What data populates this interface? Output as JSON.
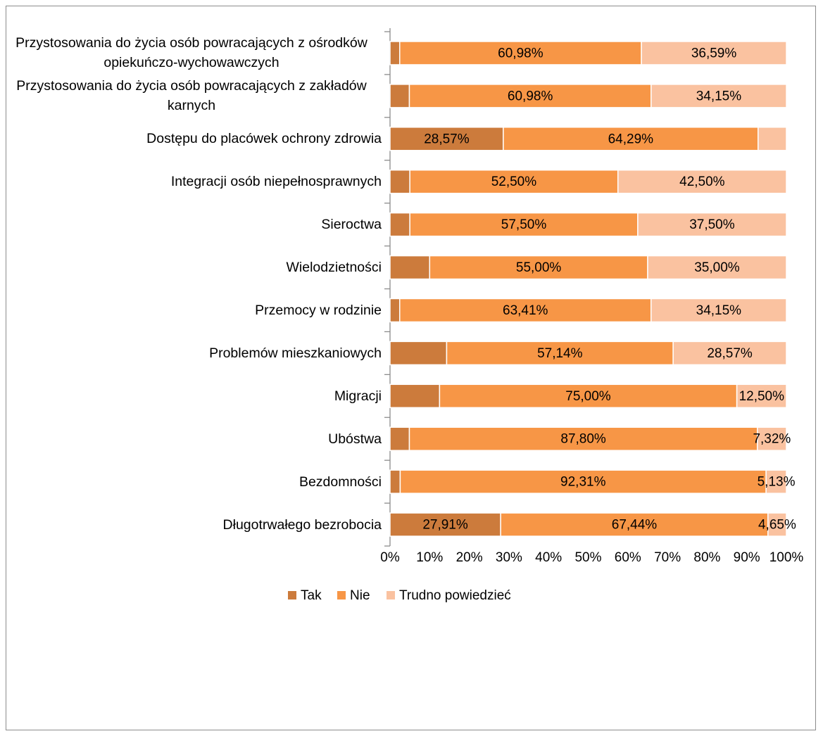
{
  "chart_data": {
    "type": "stacked_barh",
    "categories": [
      "Przystosowania do życia osób powracających z ośrodków opiekuńczo-wychowawczych",
      "Przystosowania do życia osób powracających z zakładów karnych",
      "Dostępu do placówek ochrony zdrowia",
      "Integracji osób niepełnosprawnych",
      "Sieroctwa",
      "Wielodzietności",
      "Przemocy w rodzinie",
      "Problemów mieszkaniowych",
      "Migracji",
      "Ubóstwa",
      "Bezdomności",
      "Długotrwałego bezrobocia"
    ],
    "series": [
      {
        "name": "Tak",
        "color": "#cc7b3c",
        "values": [
          2.44,
          4.88,
          28.57,
          5,
          5,
          10,
          2.44,
          14.29,
          12.5,
          4.88,
          2.56,
          27.91
        ],
        "value_labels": [
          null,
          null,
          "28,57%",
          null,
          null,
          null,
          null,
          null,
          null,
          null,
          null,
          "27,91%"
        ]
      },
      {
        "name": "Nie",
        "color": "#f79646",
        "values": [
          60.98,
          60.98,
          64.29,
          52.5,
          57.5,
          55,
          63.41,
          57.14,
          75,
          87.8,
          92.31,
          67.44
        ],
        "value_labels": [
          "60,98%",
          "60,98%",
          "64,29%",
          "52,50%",
          "57,50%",
          "55,00%",
          "63,41%",
          "57,14%",
          "75,00%",
          "87,80%",
          "92,31%",
          "67,44%"
        ]
      },
      {
        "name": "Trudno powiedzieć",
        "color": "#fac2a0",
        "values": [
          36.59,
          34.15,
          7.14,
          42.5,
          37.5,
          35,
          34.15,
          28.57,
          12.5,
          7.32,
          5.13,
          4.65
        ],
        "value_labels": [
          "36,59%",
          "34,15%",
          null,
          "42,50%",
          "37,50%",
          "35,00%",
          "34,15%",
          "28,57%",
          "12,50%",
          "7,32%",
          "5,13%",
          "4,65%"
        ]
      }
    ],
    "xlim": [
      0,
      100
    ],
    "xticks": [
      {
        "value": 0,
        "label": "0%"
      },
      {
        "value": 10,
        "label": "10%"
      },
      {
        "value": 20,
        "label": "20%"
      },
      {
        "value": 30,
        "label": "30%"
      },
      {
        "value": 40,
        "label": "40%"
      },
      {
        "value": 50,
        "label": "50%"
      },
      {
        "value": 60,
        "label": "60%"
      },
      {
        "value": 70,
        "label": "70%"
      },
      {
        "value": 80,
        "label": "80%"
      },
      {
        "value": 90,
        "label": "90%"
      },
      {
        "value": 100,
        "label": "100%"
      }
    ],
    "legend": "bottom"
  }
}
